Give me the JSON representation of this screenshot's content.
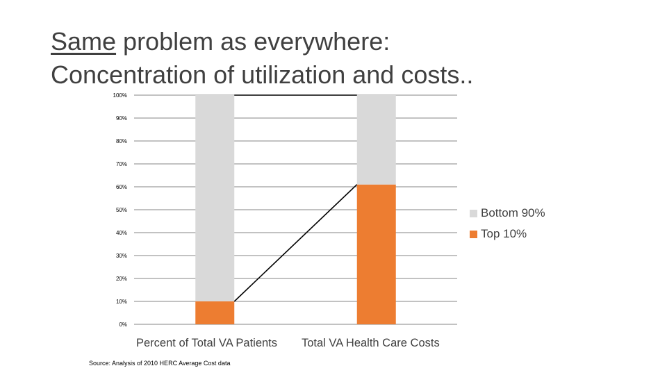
{
  "slide": {
    "title_underlined": "Same",
    "title_rest": " problem as everywhere:",
    "title_line2": "Concentration of utilization and costs..",
    "source": "Source: Analysis of 2010 HERC Average Cost data"
  },
  "colors": {
    "bottom_90": "#d9d9d9",
    "top_10": "#ed7d31",
    "gridline": "#868686",
    "connector": "#000000",
    "text": "#404040"
  },
  "chart_data": {
    "type": "bar",
    "stacked": true,
    "categories": [
      "Percent of Total VA Patients",
      "Total VA Health Care Costs"
    ],
    "series": [
      {
        "name": "Top 10%",
        "values": [
          10,
          61
        ]
      },
      {
        "name": "Bottom 90%",
        "values": [
          90,
          39
        ]
      }
    ],
    "ylim": [
      0,
      100
    ],
    "yticks": [
      "0%",
      "10%",
      "20%",
      "30%",
      "40%",
      "50%",
      "60%",
      "70%",
      "80%",
      "90%",
      "100%"
    ],
    "legend": [
      "Bottom 90%",
      "Top 10%"
    ],
    "legend_position": "right",
    "grid": true,
    "connector_lines": true
  }
}
